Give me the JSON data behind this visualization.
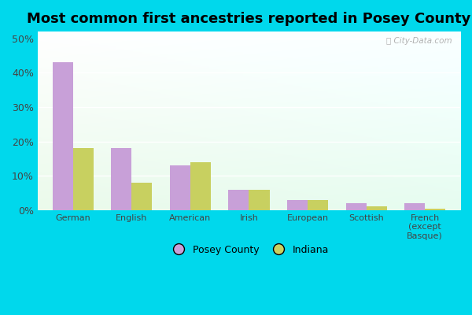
{
  "title": "Most common first ancestries reported in Posey County",
  "categories": [
    "German",
    "English",
    "American",
    "Irish",
    "European",
    "Scottish",
    "French\n(except\nBasque)"
  ],
  "posey_values": [
    43,
    18,
    13,
    6,
    3,
    2,
    2
  ],
  "indiana_values": [
    18,
    8,
    14,
    6,
    3,
    1,
    0.5
  ],
  "posey_color": "#c8a0d8",
  "indiana_color": "#c8d060",
  "bar_width": 0.35,
  "ylim": [
    0,
    52
  ],
  "yticks": [
    0,
    10,
    20,
    30,
    40,
    50
  ],
  "ytick_labels": [
    "0%",
    "10%",
    "20%",
    "30%",
    "40%",
    "50%"
  ],
  "legend_posey": "Posey County",
  "legend_indiana": "Indiana",
  "bg_color_outer": "#00d8ec",
  "title_fontsize": 13,
  "watermark_text": "ⓘ City-Data.com"
}
